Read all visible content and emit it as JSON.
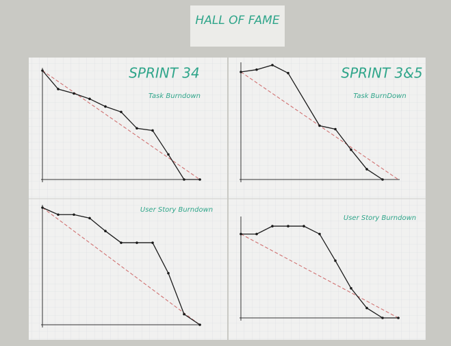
{
  "header": {
    "title": "HALL OF FAME"
  },
  "chart_data": [
    {
      "type": "line",
      "title": "SPRINT 34",
      "subtitle": "Task Burndown",
      "x": [
        0,
        1,
        2,
        3,
        4,
        5,
        6,
        7,
        8,
        9,
        10
      ],
      "xlim": [
        0,
        10
      ],
      "ylim": [
        0,
        100
      ],
      "series": [
        {
          "color": "#1a1a1a",
          "values": [
            100,
            83,
            79,
            74,
            67,
            62,
            47,
            45,
            23,
            0,
            0
          ]
        }
      ],
      "ideal_line": {
        "x": [
          0,
          10
        ],
        "values": [
          100,
          0
        ],
        "color": "#d07070"
      }
    },
    {
      "type": "line",
      "title": "SPRINT 3&5",
      "subtitle": "Task BurnDown",
      "x": [
        0,
        1,
        2,
        3,
        5,
        6,
        7,
        8,
        9
      ],
      "xlim": [
        0,
        10
      ],
      "ylim": [
        0,
        100
      ],
      "series": [
        {
          "color": "#1a1a1a",
          "values": [
            94,
            96,
            100,
            93,
            47,
            44,
            26,
            9,
            0
          ]
        }
      ],
      "ideal_line": {
        "x": [
          0,
          10
        ],
        "values": [
          94,
          0
        ],
        "color": "#d07070"
      }
    },
    {
      "type": "line",
      "title": "User Story Burndown",
      "x": [
        0,
        1,
        2,
        3,
        4,
        5,
        6,
        7,
        8,
        9,
        10
      ],
      "xlim": [
        0,
        10
      ],
      "ylim": [
        0,
        100
      ],
      "series": [
        {
          "color": "#1a1a1a",
          "values": [
            100,
            94,
            94,
            91,
            80,
            70,
            70,
            70,
            44,
            9,
            0
          ]
        }
      ],
      "ideal_line": {
        "x": [
          0,
          10
        ],
        "values": [
          100,
          0
        ],
        "color": "#d07070"
      }
    },
    {
      "type": "line",
      "title": "User Story Burndown",
      "x": [
        0,
        1,
        2,
        3,
        4,
        5,
        6,
        7,
        8,
        9,
        10
      ],
      "xlim": [
        0,
        10
      ],
      "ylim": [
        0,
        100
      ],
      "series": [
        {
          "color": "#1a1a1a",
          "values": [
            85,
            85,
            93,
            93,
            93,
            85,
            58,
            30,
            10,
            0,
            0
          ]
        }
      ],
      "ideal_line": {
        "x": [
          0,
          10
        ],
        "values": [
          85,
          0
        ],
        "color": "#d07070"
      }
    }
  ]
}
